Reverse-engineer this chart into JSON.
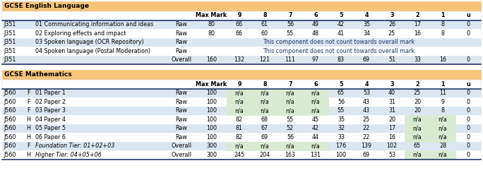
{
  "title1": "GCSE English Language",
  "title2": "GCSE Mathematics",
  "orange_bg": "#F5C47A",
  "white": "#FFFFFF",
  "light_blue_row": "#DCE6F1",
  "na_green": "#D9EAD3",
  "blue_border": "#1F3864",
  "dark_blue_text": "#1F3864",
  "span_text": "This component does not count towards overall mark",
  "col_headers": [
    "Max Mark",
    "9",
    "8",
    "7",
    "6",
    "5",
    "4",
    "3",
    "2",
    "1",
    "u"
  ],
  "eng_rows": [
    {
      "code": "J351",
      "tier": "",
      "desc": "01 Communicating information and ideas",
      "type": "Raw",
      "maxmark": "80",
      "g9": "66",
      "g8": "61",
      "g7": "56",
      "g6": "49",
      "g5": "42",
      "g4": "35",
      "g3": "26",
      "g2": "17",
      "g1": "8",
      "gu": "0",
      "span": false,
      "overall": false
    },
    {
      "code": "J351",
      "tier": "",
      "desc": "02 Exploring effects and impact",
      "type": "Raw",
      "maxmark": "80",
      "g9": "66",
      "g8": "60",
      "g7": "55",
      "g6": "48",
      "g5": "41",
      "g4": "34",
      "g3": "25",
      "g2": "16",
      "g1": "8",
      "gu": "0",
      "span": false,
      "overall": false
    },
    {
      "code": "J351",
      "tier": "",
      "desc": "03 Spoken language (OCR Repository)",
      "type": "Raw",
      "maxmark": "",
      "g9": "",
      "g8": "",
      "g7": "",
      "g6": "",
      "g5": "",
      "g4": "",
      "g3": "",
      "g2": "",
      "g1": "",
      "gu": "",
      "span": true,
      "overall": false
    },
    {
      "code": "J351",
      "tier": "",
      "desc": "04 Spoken language (Postal Moderation)",
      "type": "Raw",
      "maxmark": "",
      "g9": "",
      "g8": "",
      "g7": "",
      "g6": "",
      "g5": "",
      "g4": "",
      "g3": "",
      "g2": "",
      "g1": "",
      "gu": "",
      "span": true,
      "overall": false
    },
    {
      "code": "J351",
      "tier": "",
      "desc": "",
      "type": "Overall",
      "maxmark": "160",
      "g9": "132",
      "g8": "121",
      "g7": "111",
      "g6": "97",
      "g5": "83",
      "g4": "69",
      "g3": "51",
      "g2": "33",
      "g1": "16",
      "gu": "0",
      "span": false,
      "overall": true
    }
  ],
  "math_rows": [
    {
      "code": "J560",
      "tier": "F",
      "desc": "01 Paper 1",
      "type": "Raw",
      "maxmark": "100",
      "g9": "n/a",
      "g8": "n/a",
      "g7": "n/a",
      "g6": "n/a",
      "g5": "65",
      "g4": "53",
      "g3": "40",
      "g2": "25",
      "g1": "11",
      "gu": "0",
      "overall": false
    },
    {
      "code": "J560",
      "tier": "F",
      "desc": "02 Paper 2",
      "type": "Raw",
      "maxmark": "100",
      "g9": "n/a",
      "g8": "n/a",
      "g7": "n/a",
      "g6": "n/a",
      "g5": "56",
      "g4": "43",
      "g3": "31",
      "g2": "20",
      "g1": "9",
      "gu": "0",
      "overall": false
    },
    {
      "code": "J560",
      "tier": "F",
      "desc": "03 Paper 3",
      "type": "Raw",
      "maxmark": "100",
      "g9": "n/a",
      "g8": "n/a",
      "g7": "n/a",
      "g6": "n/a",
      "g5": "55",
      "g4": "43",
      "g3": "31",
      "g2": "20",
      "g1": "8",
      "gu": "0",
      "overall": false
    },
    {
      "code": "J560",
      "tier": "H",
      "desc": "04 Paper 4",
      "type": "Raw",
      "maxmark": "100",
      "g9": "82",
      "g8": "68",
      "g7": "55",
      "g6": "45",
      "g5": "35",
      "g4": "25",
      "g3": "20",
      "g2": "n/a",
      "g1": "n/a",
      "gu": "0",
      "overall": false
    },
    {
      "code": "J560",
      "tier": "H",
      "desc": "05 Paper 5",
      "type": "Raw",
      "maxmark": "100",
      "g9": "81",
      "g8": "67",
      "g7": "52",
      "g6": "42",
      "g5": "32",
      "g4": "22",
      "g3": "17",
      "g2": "n/a",
      "g1": "n/a",
      "gu": "0",
      "overall": false
    },
    {
      "code": "J560",
      "tier": "H",
      "desc": "06 Paper 6",
      "type": "Raw",
      "maxmark": "100",
      "g9": "82",
      "g8": "69",
      "g7": "56",
      "g6": "44",
      "g5": "33",
      "g4": "22",
      "g3": "16",
      "g2": "n/a",
      "g1": "n/a",
      "gu": "0",
      "overall": false
    },
    {
      "code": "J560",
      "tier": "F",
      "desc": "Foundation Tier: 01+02+03",
      "type": "Overall",
      "maxmark": "300",
      "g9": "n/a",
      "g8": "n/a",
      "g7": "n/a",
      "g6": "n/a",
      "g5": "176",
      "g4": "139",
      "g3": "102",
      "g2": "65",
      "g1": "28",
      "gu": "0",
      "overall": true
    },
    {
      "code": "J560",
      "tier": "H",
      "desc": "Higher Tier: 04+05+06",
      "type": "Overall",
      "maxmark": "300",
      "g9": "245",
      "g8": "204",
      "g7": "163",
      "g6": "131",
      "g5": "100",
      "g4": "69",
      "g3": "53",
      "g2": "n/a",
      "g1": "n/a",
      "gu": "0",
      "overall": true
    }
  ]
}
